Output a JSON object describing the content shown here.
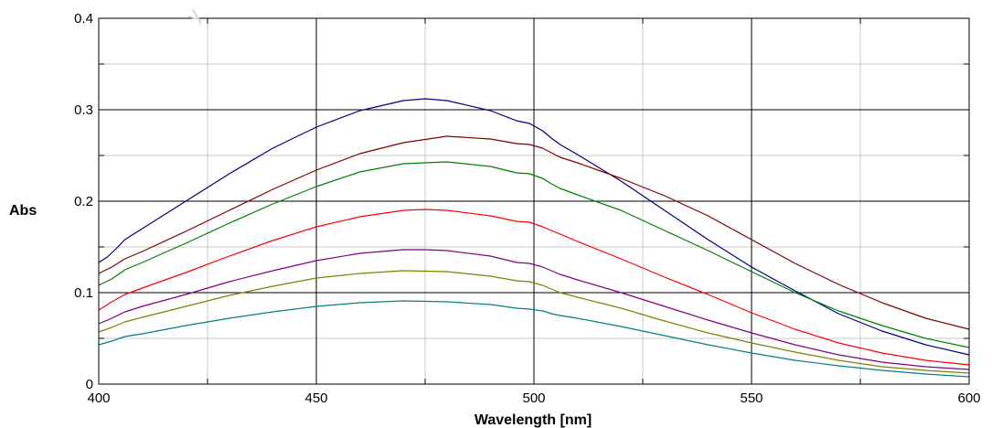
{
  "watermark_text": "y",
  "chart_data": {
    "type": "line",
    "title": "",
    "xlabel": "Wavelength [nm]",
    "ylabel": "Abs",
    "xlim": [
      400,
      600
    ],
    "ylim": [
      0,
      0.4
    ],
    "x_ticks": [
      400,
      450,
      500,
      550,
      600
    ],
    "x_tick_labels": [
      "400",
      "450",
      "500",
      "550",
      "600"
    ],
    "y_ticks": [
      0,
      0.1,
      0.2,
      0.3,
      0.4
    ],
    "y_tick_labels": [
      "0",
      "0.1",
      "0.2",
      "0.3",
      "0.4"
    ],
    "grid": true,
    "legend": "none",
    "colors": {
      "major_grid": "#000000",
      "minor_grid": "#c8c8c8",
      "frame": "#000000"
    },
    "series": [
      {
        "color": "#000080",
        "x": [
          400,
          402,
          404,
          406,
          410,
          420,
          430,
          440,
          450,
          460,
          470,
          475,
          480,
          490,
          496,
          499,
          502,
          504,
          506,
          510,
          520,
          530,
          540,
          550,
          560,
          570,
          580,
          590,
          600
        ],
        "y": [
          0.133,
          0.139,
          0.148,
          0.158,
          0.17,
          0.2,
          0.23,
          0.258,
          0.281,
          0.299,
          0.31,
          0.312,
          0.31,
          0.299,
          0.288,
          0.285,
          0.277,
          0.269,
          0.262,
          0.251,
          0.222,
          0.19,
          0.158,
          0.128,
          0.102,
          0.077,
          0.058,
          0.043,
          0.032
        ]
      },
      {
        "color": "#800000",
        "x": [
          400,
          403,
          406,
          410,
          420,
          430,
          440,
          450,
          460,
          470,
          480,
          490,
          496,
          499,
          502,
          504,
          506,
          510,
          520,
          530,
          540,
          550,
          560,
          570,
          580,
          590,
          600
        ],
        "y": [
          0.121,
          0.128,
          0.137,
          0.145,
          0.167,
          0.19,
          0.213,
          0.234,
          0.252,
          0.264,
          0.271,
          0.268,
          0.263,
          0.262,
          0.258,
          0.253,
          0.248,
          0.242,
          0.225,
          0.206,
          0.184,
          0.158,
          0.132,
          0.109,
          0.089,
          0.072,
          0.06
        ]
      },
      {
        "color": "#008000",
        "x": [
          400,
          403,
          406,
          410,
          420,
          430,
          440,
          450,
          460,
          470,
          480,
          490,
          496,
          499,
          502,
          504,
          506,
          510,
          520,
          530,
          540,
          550,
          560,
          570,
          580,
          590,
          600
        ],
        "y": [
          0.108,
          0.115,
          0.125,
          0.133,
          0.154,
          0.176,
          0.197,
          0.216,
          0.232,
          0.241,
          0.243,
          0.238,
          0.231,
          0.23,
          0.225,
          0.219,
          0.214,
          0.207,
          0.19,
          0.168,
          0.146,
          0.123,
          0.1,
          0.08,
          0.064,
          0.05,
          0.04
        ]
      },
      {
        "color": "#ff0000",
        "x": [
          400,
          403,
          406,
          410,
          420,
          430,
          440,
          450,
          460,
          470,
          475,
          480,
          490,
          496,
          499,
          502,
          504,
          506,
          510,
          520,
          530,
          540,
          550,
          560,
          570,
          580,
          590,
          600
        ],
        "y": [
          0.081,
          0.09,
          0.098,
          0.105,
          0.122,
          0.14,
          0.157,
          0.172,
          0.183,
          0.19,
          0.191,
          0.19,
          0.184,
          0.178,
          0.177,
          0.172,
          0.168,
          0.164,
          0.156,
          0.137,
          0.117,
          0.098,
          0.078,
          0.06,
          0.045,
          0.034,
          0.026,
          0.021
        ]
      },
      {
        "color": "#800080",
        "x": [
          400,
          403,
          406,
          410,
          420,
          430,
          440,
          450,
          460,
          470,
          475,
          480,
          490,
          496,
          499,
          502,
          504,
          506,
          510,
          520,
          530,
          540,
          550,
          560,
          570,
          580,
          590,
          600
        ],
        "y": [
          0.066,
          0.072,
          0.079,
          0.085,
          0.098,
          0.112,
          0.124,
          0.135,
          0.143,
          0.147,
          0.147,
          0.146,
          0.14,
          0.133,
          0.132,
          0.128,
          0.124,
          0.12,
          0.114,
          0.1,
          0.085,
          0.07,
          0.056,
          0.043,
          0.032,
          0.024,
          0.019,
          0.016
        ]
      },
      {
        "color": "#808000",
        "x": [
          400,
          403,
          406,
          410,
          420,
          430,
          440,
          450,
          460,
          470,
          480,
          490,
          496,
          499,
          502,
          504,
          506,
          510,
          520,
          530,
          540,
          550,
          560,
          570,
          580,
          590,
          600
        ],
        "y": [
          0.057,
          0.062,
          0.068,
          0.073,
          0.085,
          0.097,
          0.107,
          0.116,
          0.121,
          0.124,
          0.123,
          0.118,
          0.113,
          0.112,
          0.108,
          0.104,
          0.1,
          0.095,
          0.083,
          0.069,
          0.056,
          0.045,
          0.035,
          0.026,
          0.019,
          0.015,
          0.012
        ]
      },
      {
        "color": "#008080",
        "x": [
          400,
          403,
          406,
          410,
          420,
          430,
          440,
          450,
          460,
          470,
          480,
          490,
          496,
          499,
          502,
          504,
          506,
          510,
          520,
          530,
          540,
          550,
          560,
          570,
          580,
          590,
          600
        ],
        "y": [
          0.043,
          0.047,
          0.052,
          0.055,
          0.064,
          0.072,
          0.079,
          0.085,
          0.089,
          0.091,
          0.09,
          0.087,
          0.083,
          0.082,
          0.08,
          0.077,
          0.075,
          0.072,
          0.063,
          0.053,
          0.043,
          0.034,
          0.026,
          0.02,
          0.015,
          0.011,
          0.008
        ]
      }
    ]
  }
}
